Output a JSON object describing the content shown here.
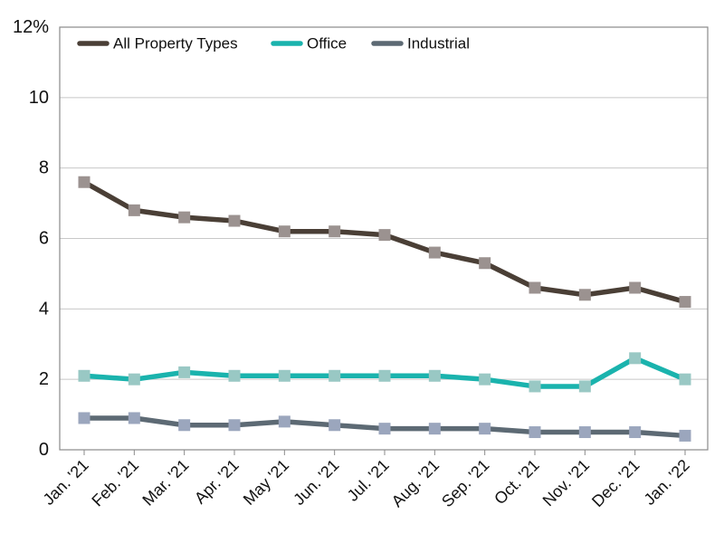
{
  "chart_data": {
    "type": "line",
    "title": "",
    "xlabel": "",
    "ylabel": "",
    "categories": [
      "Jan. '21",
      "Feb. '21",
      "Mar. '21",
      "Apr. '21",
      "May '21",
      "Jun. '21",
      "Jul. '21",
      "Aug. '21",
      "Sep. '21",
      "Oct. '21",
      "Nov. '21",
      "Dec. '21",
      "Jan. '22"
    ],
    "y_ticks": [
      {
        "value": 0,
        "label": "0"
      },
      {
        "value": 2,
        "label": "2"
      },
      {
        "value": 4,
        "label": "4"
      },
      {
        "value": 6,
        "label": "6"
      },
      {
        "value": 8,
        "label": "8"
      },
      {
        "value": 10,
        "label": "10"
      },
      {
        "value": 12,
        "label": "12%"
      }
    ],
    "ylim": [
      0,
      12
    ],
    "grid": "horizontal",
    "legend_position": "top-left",
    "series": [
      {
        "name": "All Property Types",
        "color": "#4a3f36",
        "marker_color": "#9b9290",
        "values": [
          7.6,
          6.8,
          6.6,
          6.5,
          6.2,
          6.2,
          6.1,
          5.6,
          5.3,
          4.6,
          4.4,
          4.6,
          4.2
        ]
      },
      {
        "name": "Office",
        "color": "#1ab3ad",
        "marker_color": "#99c8c4",
        "values": [
          2.1,
          2.0,
          2.2,
          2.1,
          2.1,
          2.1,
          2.1,
          2.1,
          2.0,
          1.8,
          1.8,
          2.6,
          2.0
        ]
      },
      {
        "name": "Industrial",
        "color": "#5d6a74",
        "marker_color": "#9ba6bd",
        "values": [
          0.9,
          0.9,
          0.7,
          0.7,
          0.8,
          0.7,
          0.6,
          0.6,
          0.6,
          0.5,
          0.5,
          0.5,
          0.4
        ]
      }
    ]
  }
}
